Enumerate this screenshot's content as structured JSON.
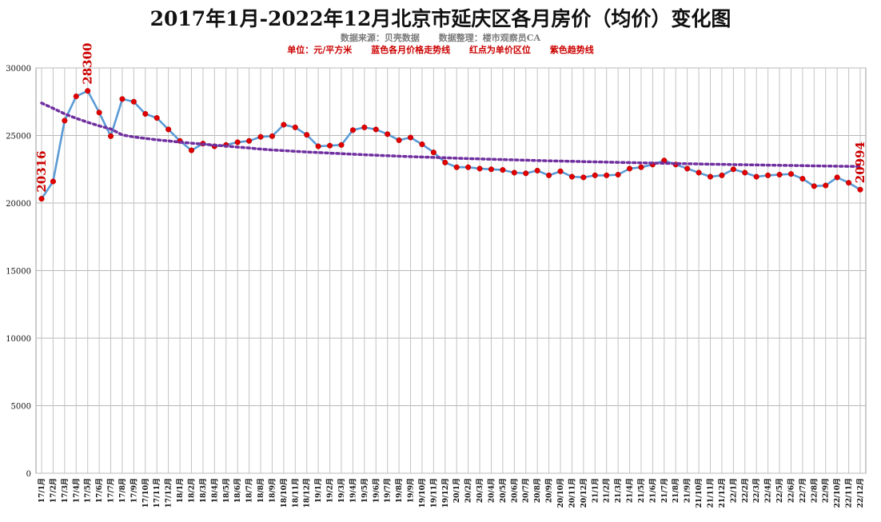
{
  "chart_data": {
    "type": "line",
    "title": "2017年1月-2022年12月北京市延庆区各月房价（均价）变化图",
    "subtitle_source": [
      "数据来源：贝壳数据",
      "数据整理：楼市观察员CA"
    ],
    "subtitle_legend": [
      "单位：元/平方米",
      "蓝色各月价格走势线",
      "红点为单价区位",
      "紫色趋势线"
    ],
    "ylim": [
      0,
      30000
    ],
    "yticks": [
      0,
      5000,
      10000,
      15000,
      20000,
      25000,
      30000
    ],
    "grid": true,
    "categories": [
      "17/1月",
      "17/2月",
      "17/3月",
      "17/4月",
      "17/5月",
      "17/6月",
      "17/7月",
      "17/8月",
      "17/9月",
      "17/10月",
      "17/11月",
      "17/12月",
      "18/1月",
      "18/2月",
      "18/3月",
      "18/4月",
      "18/5月",
      "18/6月",
      "18/7月",
      "18/8月",
      "18/9月",
      "18/10月",
      "18/11月",
      "18/12月",
      "19/1月",
      "19/2月",
      "19/3月",
      "19/4月",
      "19/5月",
      "19/6月",
      "19/7月",
      "19/8月",
      "19/9月",
      "19/10月",
      "19/11月",
      "19/12月",
      "20/1月",
      "20/2月",
      "20/3月",
      "20/4月",
      "20/5月",
      "20/6月",
      "20/7月",
      "20/8月",
      "20/9月",
      "20/10月",
      "20/11月",
      "20/12月",
      "21/1月",
      "21/2月",
      "21/3月",
      "21/4月",
      "21/5月",
      "21/6月",
      "21/7月",
      "21/8月",
      "21/9月",
      "21/10月",
      "21/11月",
      "21/12月",
      "22/1月",
      "22/2月",
      "22/3月",
      "22/4月",
      "22/5月",
      "22/6月",
      "22/7月",
      "22/8月",
      "22/9月",
      "22/10月",
      "22/11月",
      "22/12月"
    ],
    "series": [
      {
        "name": "蓝色各月价格走势线",
        "color": "#5b9bd5",
        "marker_color": "#e00000",
        "values": [
          20316,
          21600,
          26100,
          27900,
          28300,
          26700,
          24950,
          27700,
          27500,
          26600,
          26300,
          25450,
          24600,
          23900,
          24400,
          24200,
          24300,
          24500,
          24600,
          24900,
          24950,
          25800,
          25600,
          25050,
          24200,
          24250,
          24300,
          25400,
          25600,
          25450,
          25100,
          24650,
          24850,
          24350,
          23750,
          23000,
          22650,
          22650,
          22550,
          22500,
          22450,
          22250,
          22200,
          22400,
          22050,
          22350,
          21950,
          21900,
          22050,
          22050,
          22100,
          22550,
          22650,
          22850,
          23150,
          22850,
          22550,
          22250,
          21950,
          22050,
          22500,
          22250,
          21950,
          22050,
          22100,
          22150,
          21800,
          21250,
          21300,
          21900,
          21500,
          20994
        ]
      },
      {
        "name": "紫色趋势线",
        "color": "#7030a0",
        "kind": "trend",
        "values": [
          27400,
          27010,
          26601,
          26272,
          25979,
          25713,
          25483,
          25037,
          24891,
          24788,
          24683,
          24599,
          24507,
          24429,
          24360,
          24285,
          24216,
          24141,
          24079,
          23996,
          23930,
          23881,
          23831,
          23784,
          23741,
          23701,
          23659,
          23616,
          23576,
          23538,
          23503,
          23469,
          23437,
          23406,
          23376,
          23347,
          23319,
          23292,
          23266,
          23241,
          23217,
          23193,
          23170,
          23148,
          23127,
          23106,
          23086,
          23066,
          23047,
          23028,
          23010,
          22992,
          22975,
          22958,
          22941,
          22925,
          22909,
          22893,
          22878,
          22863,
          22848,
          22834,
          22820,
          22806,
          22793,
          22780,
          22767,
          22754,
          22742,
          22730,
          22718,
          22706
        ]
      }
    ],
    "annotations": [
      {
        "index": 0,
        "label": "20316"
      },
      {
        "index": 4,
        "label": "28300"
      },
      {
        "index": 71,
        "label": "20994"
      }
    ]
  }
}
